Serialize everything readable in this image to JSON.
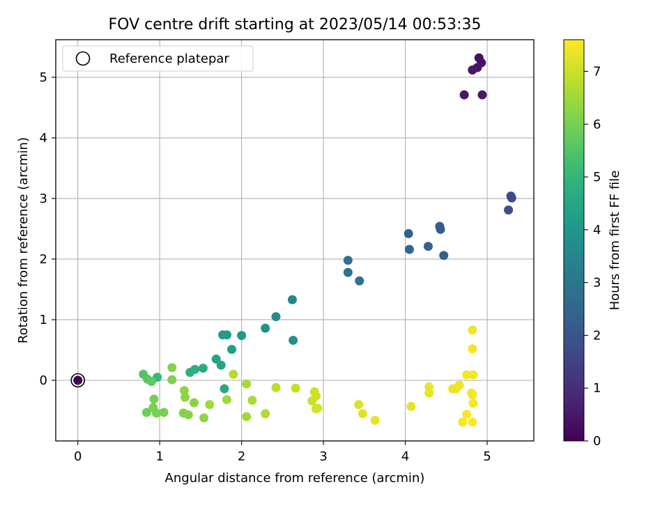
{
  "chart_data": {
    "type": "scatter",
    "title": "FOV centre drift starting at 2023/05/14 00:53:35",
    "xlabel": "Angular distance from reference (arcmin)",
    "ylabel": "Rotation from reference (arcmin)",
    "xlim": [
      -0.27,
      5.57
    ],
    "ylim": [
      -1.0,
      5.62
    ],
    "xticks": [
      0,
      1,
      2,
      3,
      4,
      5
    ],
    "yticks": [
      0,
      1,
      2,
      3,
      4,
      5
    ],
    "grid": true,
    "legend": {
      "position": "top-left",
      "entries": [
        "Reference platepar"
      ]
    },
    "reference_point": {
      "x": 0,
      "y": 0
    },
    "colorbar": {
      "label": "Hours from first FF file",
      "colormap": "viridis",
      "range": [
        0,
        7.6
      ],
      "ticks": [
        0,
        1,
        2,
        3,
        4,
        5,
        6,
        7
      ]
    },
    "points": [
      {
        "x": 0.0,
        "y": 0.0,
        "c": 0.0
      },
      {
        "x": 4.9,
        "y": 5.32,
        "c": 0.3
      },
      {
        "x": 4.93,
        "y": 5.24,
        "c": 0.35
      },
      {
        "x": 4.88,
        "y": 5.16,
        "c": 0.4
      },
      {
        "x": 4.82,
        "y": 5.12,
        "c": 0.45
      },
      {
        "x": 4.72,
        "y": 4.71,
        "c": 0.5
      },
      {
        "x": 4.94,
        "y": 4.71,
        "c": 0.55
      },
      {
        "x": 5.29,
        "y": 3.04,
        "c": 1.7
      },
      {
        "x": 5.3,
        "y": 3.01,
        "c": 1.75
      },
      {
        "x": 5.26,
        "y": 2.81,
        "c": 1.85
      },
      {
        "x": 4.42,
        "y": 2.54,
        "c": 2.2
      },
      {
        "x": 4.43,
        "y": 2.49,
        "c": 2.25
      },
      {
        "x": 4.04,
        "y": 2.42,
        "c": 2.35
      },
      {
        "x": 4.28,
        "y": 2.21,
        "c": 2.4
      },
      {
        "x": 4.05,
        "y": 2.16,
        "c": 2.45
      },
      {
        "x": 4.47,
        "y": 2.06,
        "c": 2.3
      },
      {
        "x": 3.3,
        "y": 1.98,
        "c": 2.8
      },
      {
        "x": 3.3,
        "y": 1.78,
        "c": 2.85
      },
      {
        "x": 3.44,
        "y": 1.64,
        "c": 2.9
      },
      {
        "x": 2.62,
        "y": 1.33,
        "c": 3.6
      },
      {
        "x": 2.42,
        "y": 1.05,
        "c": 3.7
      },
      {
        "x": 2.29,
        "y": 0.86,
        "c": 3.9
      },
      {
        "x": 2.63,
        "y": 0.66,
        "c": 3.8
      },
      {
        "x": 1.77,
        "y": 0.75,
        "c": 4.1
      },
      {
        "x": 1.82,
        "y": 0.75,
        "c": 4.15
      },
      {
        "x": 2.0,
        "y": 0.74,
        "c": 4.05
      },
      {
        "x": 1.88,
        "y": 0.51,
        "c": 4.3
      },
      {
        "x": 1.69,
        "y": 0.35,
        "c": 4.4
      },
      {
        "x": 1.75,
        "y": 0.25,
        "c": 4.5
      },
      {
        "x": 1.53,
        "y": 0.2,
        "c": 4.7
      },
      {
        "x": 1.43,
        "y": 0.18,
        "c": 4.75
      },
      {
        "x": 1.37,
        "y": 0.13,
        "c": 4.8
      },
      {
        "x": 1.79,
        "y": -0.14,
        "c": 4.6
      },
      {
        "x": 0.97,
        "y": 0.05,
        "c": 5.1
      },
      {
        "x": 0.8,
        "y": 0.1,
        "c": 5.5
      },
      {
        "x": 0.85,
        "y": 0.02,
        "c": 5.6
      },
      {
        "x": 0.9,
        "y": -0.02,
        "c": 5.7
      },
      {
        "x": 1.15,
        "y": 0.21,
        "c": 6.2
      },
      {
        "x": 1.15,
        "y": 0.01,
        "c": 6.1
      },
      {
        "x": 1.3,
        "y": -0.17,
        "c": 6.3
      },
      {
        "x": 1.31,
        "y": -0.28,
        "c": 6.3
      },
      {
        "x": 0.93,
        "y": -0.31,
        "c": 6.0
      },
      {
        "x": 1.42,
        "y": -0.37,
        "c": 6.2
      },
      {
        "x": 0.92,
        "y": -0.45,
        "c": 6.0
      },
      {
        "x": 0.84,
        "y": -0.53,
        "c": 5.9
      },
      {
        "x": 0.96,
        "y": -0.54,
        "c": 6.0
      },
      {
        "x": 1.05,
        "y": -0.53,
        "c": 6.0
      },
      {
        "x": 1.29,
        "y": -0.54,
        "c": 6.1
      },
      {
        "x": 1.35,
        "y": -0.57,
        "c": 6.2
      },
      {
        "x": 1.54,
        "y": -0.62,
        "c": 6.3
      },
      {
        "x": 1.61,
        "y": -0.4,
        "c": 6.5
      },
      {
        "x": 1.82,
        "y": -0.32,
        "c": 6.5
      },
      {
        "x": 1.9,
        "y": 0.1,
        "c": 6.7
      },
      {
        "x": 2.06,
        "y": -0.06,
        "c": 6.6
      },
      {
        "x": 2.13,
        "y": -0.33,
        "c": 6.6
      },
      {
        "x": 2.06,
        "y": -0.6,
        "c": 6.5
      },
      {
        "x": 2.29,
        "y": -0.55,
        "c": 6.7
      },
      {
        "x": 2.42,
        "y": -0.12,
        "c": 6.8
      },
      {
        "x": 2.66,
        "y": -0.13,
        "c": 6.9
      },
      {
        "x": 2.89,
        "y": -0.19,
        "c": 7.0
      },
      {
        "x": 2.91,
        "y": -0.26,
        "c": 7.05
      },
      {
        "x": 2.86,
        "y": -0.34,
        "c": 7.0
      },
      {
        "x": 2.91,
        "y": -0.47,
        "c": 7.1
      },
      {
        "x": 2.93,
        "y": -0.46,
        "c": 7.1
      },
      {
        "x": 3.43,
        "y": -0.4,
        "c": 7.2
      },
      {
        "x": 3.48,
        "y": -0.55,
        "c": 7.25
      },
      {
        "x": 3.63,
        "y": -0.66,
        "c": 7.3
      },
      {
        "x": 4.07,
        "y": -0.43,
        "c": 7.3
      },
      {
        "x": 4.29,
        "y": -0.11,
        "c": 7.35
      },
      {
        "x": 4.29,
        "y": -0.21,
        "c": 7.35
      },
      {
        "x": 4.58,
        "y": -0.14,
        "c": 7.4
      },
      {
        "x": 4.62,
        "y": -0.14,
        "c": 7.4
      },
      {
        "x": 4.66,
        "y": -0.08,
        "c": 7.45
      },
      {
        "x": 4.75,
        "y": 0.09,
        "c": 7.5
      },
      {
        "x": 4.83,
        "y": 0.09,
        "c": 7.5
      },
      {
        "x": 4.81,
        "y": -0.21,
        "c": 7.5
      },
      {
        "x": 4.82,
        "y": -0.24,
        "c": 7.5
      },
      {
        "x": 4.83,
        "y": -0.38,
        "c": 7.55
      },
      {
        "x": 4.75,
        "y": -0.56,
        "c": 7.55
      },
      {
        "x": 4.7,
        "y": -0.69,
        "c": 7.55
      },
      {
        "x": 4.82,
        "y": -0.69,
        "c": 7.6
      },
      {
        "x": 4.82,
        "y": 0.52,
        "c": 7.5
      },
      {
        "x": 4.82,
        "y": 0.83,
        "c": 7.45
      }
    ]
  }
}
